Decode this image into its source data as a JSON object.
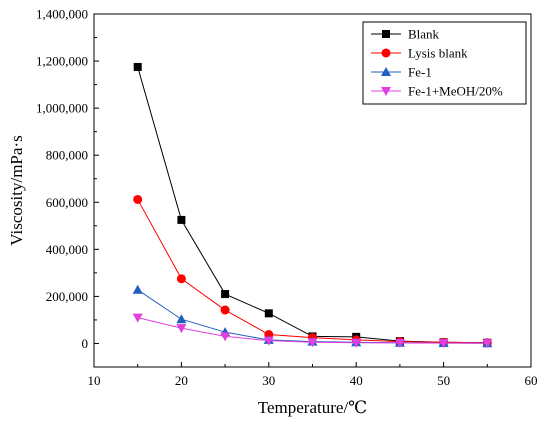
{
  "chart_data": {
    "type": "line",
    "title": "",
    "xlabel": "Temperature/℃",
    "ylabel": "Viscosity/mPa·s",
    "xlim": [
      10,
      60
    ],
    "ylim": [
      -100000,
      1400000
    ],
    "x_ticks": [
      "10",
      "20",
      "30",
      "40",
      "50",
      "60"
    ],
    "y_ticks": [
      "0",
      "200,000",
      "400,000",
      "600,000",
      "800,000",
      "1,000,000",
      "1,200,000",
      "1,400,000"
    ],
    "grid": false,
    "legend_position": "top-right",
    "x": [
      15,
      20,
      25,
      30,
      35,
      40,
      45,
      50,
      55
    ],
    "series": [
      {
        "name": "Blank",
        "color": "#000000",
        "marker": "square",
        "values": [
          1175000,
          525000,
          210000,
          128000,
          30000,
          28000,
          10000,
          5000,
          3000
        ]
      },
      {
        "name": "Lysis blank",
        "color": "#ff0000",
        "marker": "circle",
        "values": [
          612000,
          275000,
          142000,
          38000,
          25000,
          15000,
          8000,
          5000,
          3000
        ]
      },
      {
        "name": "Fe-1",
        "color": "#1f5fbf",
        "marker": "triangle-up",
        "values": [
          228000,
          103000,
          48000,
          15000,
          8000,
          5000,
          3000,
          2000,
          1000
        ]
      },
      {
        "name": "Fe-1+MeOH/20%",
        "color": "#e040e0",
        "marker": "triangle-down",
        "values": [
          110000,
          65000,
          30000,
          12000,
          5000,
          3000,
          2000,
          1500,
          1000
        ]
      }
    ]
  }
}
